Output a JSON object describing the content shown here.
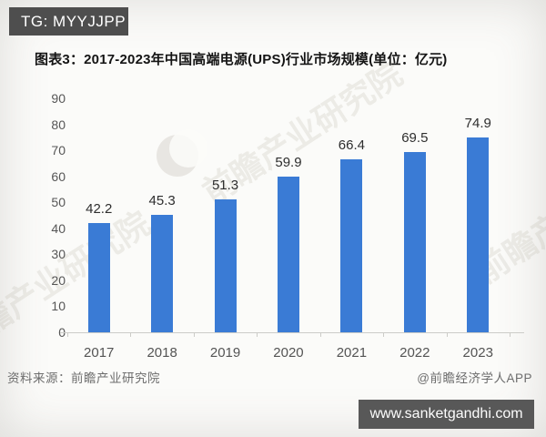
{
  "overlay": {
    "tg_badge": "TG: MYYJJPP",
    "site_badge": "www.sanketgandhi.com"
  },
  "title": "图表3：2017-2023年中国高端电源(UPS)行业市场规模(单位：亿元)",
  "footer": {
    "source": "资料来源：前瞻产业研究院",
    "credit": "@前瞻经济学人APP"
  },
  "watermark": {
    "text": "前瞻产业研究院"
  },
  "colors": {
    "bar": "#3a7bd5",
    "badge_bg": "#4e4e4e",
    "axis_text": "#565656",
    "title_text": "#141414"
  },
  "chart_data": {
    "type": "bar",
    "title": "图表3：2017-2023年中国高端电源(UPS)行业市场规模(单位：亿元)",
    "categories": [
      "2017",
      "2018",
      "2019",
      "2020",
      "2021",
      "2022",
      "2023"
    ],
    "values": [
      42.2,
      45.3,
      51.3,
      59.9,
      66.4,
      69.5,
      74.9
    ],
    "xlabel": "",
    "ylabel": "",
    "unit": "亿元",
    "ylim": [
      0,
      90
    ],
    "yticks": [
      0,
      10,
      20,
      30,
      40,
      50,
      60,
      70,
      80,
      90
    ],
    "grid": false,
    "legend": false,
    "bar_color": "#3a7bd5"
  }
}
